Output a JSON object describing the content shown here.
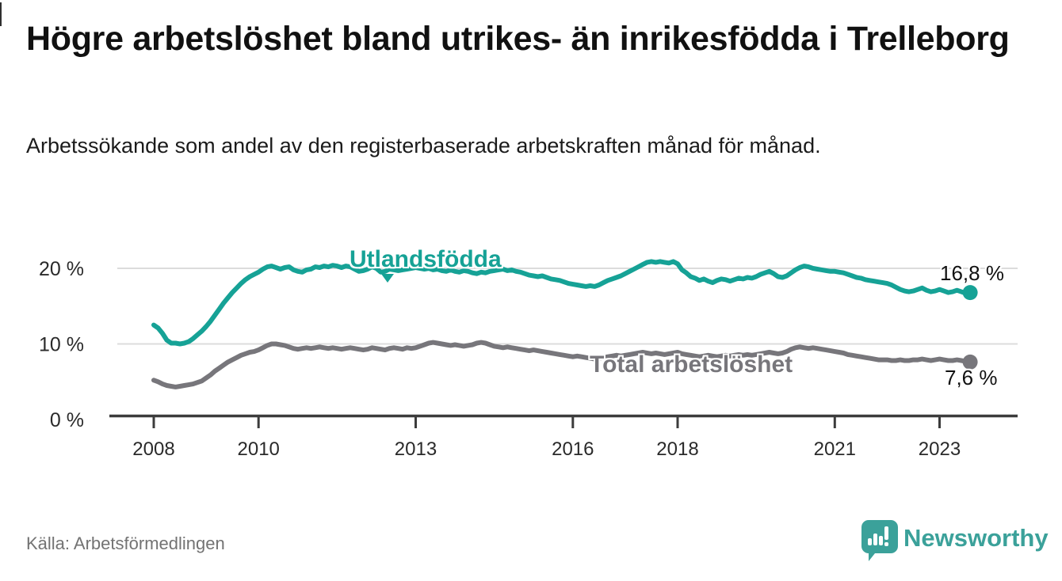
{
  "header": {
    "title": "Högre arbetslöshet bland utrikes- än inrikesfödda i Trelleborg",
    "subtitle": "Arbetssökande som andel av den registerbaserade arbetskraften månad för månad."
  },
  "colors": {
    "teal": "#16a296",
    "gray": "#77767b",
    "grid": "#dcdcdc",
    "axis": "#3c3c3c",
    "tick_text": "#2a2a2a",
    "title_text": "#111111",
    "muted_text": "#737373",
    "logo_teal": "#3ba19a",
    "background": "#ffffff"
  },
  "chart_data": {
    "type": "line",
    "unit": "%",
    "x_start_year": 2008,
    "points_per_year": 12,
    "x_ticks": [
      {
        "year": 2008,
        "label": "2008"
      },
      {
        "year": 2010,
        "label": "2010"
      },
      {
        "year": 2013,
        "label": "2013"
      },
      {
        "year": 2016,
        "label": "2016"
      },
      {
        "year": 2018,
        "label": "2018"
      },
      {
        "year": 2021,
        "label": "2021"
      },
      {
        "year": 2023,
        "label": "2023"
      }
    ],
    "y_ticks": [
      {
        "value": 0,
        "label": "0 %"
      },
      {
        "value": 10,
        "label": "10 %"
      },
      {
        "value": 20,
        "label": "20 %"
      }
    ],
    "ylim": [
      0,
      23
    ],
    "grid": true,
    "legend_position": "inline-labels",
    "series": [
      {
        "name": "Utlandsfödda",
        "color": "#16a296",
        "end_label": "16,8 %",
        "end_value": 16.8,
        "values": [
          12.5,
          12.1,
          11.4,
          10.5,
          10.1,
          10.1,
          10.0,
          10.1,
          10.3,
          10.7,
          11.2,
          11.7,
          12.3,
          13.0,
          13.8,
          14.6,
          15.4,
          16.1,
          16.8,
          17.4,
          18.0,
          18.5,
          18.9,
          19.2,
          19.5,
          19.9,
          20.2,
          20.3,
          20.1,
          19.9,
          20.1,
          20.2,
          19.8,
          19.6,
          19.5,
          19.8,
          19.9,
          20.2,
          20.1,
          20.3,
          20.2,
          20.4,
          20.3,
          20.1,
          20.3,
          20.2,
          19.9,
          19.6,
          19.7,
          19.9,
          20.2,
          20.0,
          19.5,
          19.6,
          19.9,
          19.8,
          19.7,
          19.8,
          19.9,
          20.0,
          20.1,
          20.0,
          19.9,
          20.0,
          19.8,
          19.9,
          19.7,
          19.6,
          19.8,
          19.6,
          19.5,
          19.7,
          19.6,
          19.4,
          19.3,
          19.5,
          19.4,
          19.6,
          19.7,
          19.8,
          19.9,
          19.7,
          19.8,
          19.6,
          19.5,
          19.3,
          19.1,
          19.0,
          18.9,
          19.0,
          18.8,
          18.6,
          18.5,
          18.4,
          18.2,
          18.0,
          17.9,
          17.8,
          17.7,
          17.6,
          17.7,
          17.6,
          17.8,
          18.1,
          18.4,
          18.6,
          18.8,
          19.0,
          19.3,
          19.6,
          19.9,
          20.2,
          20.5,
          20.8,
          20.9,
          20.8,
          20.9,
          20.8,
          20.7,
          20.9,
          20.6,
          19.8,
          19.4,
          18.9,
          18.7,
          18.4,
          18.6,
          18.3,
          18.1,
          18.4,
          18.6,
          18.5,
          18.3,
          18.5,
          18.7,
          18.6,
          18.8,
          18.7,
          18.9,
          19.2,
          19.4,
          19.6,
          19.3,
          18.9,
          18.8,
          19.0,
          19.4,
          19.8,
          20.1,
          20.3,
          20.2,
          20.0,
          19.9,
          19.8,
          19.7,
          19.6,
          19.6,
          19.5,
          19.4,
          19.2,
          19.0,
          18.8,
          18.7,
          18.5,
          18.4,
          18.3,
          18.2,
          18.1,
          18.0,
          17.8,
          17.5,
          17.2,
          17.0,
          16.9,
          17.0,
          17.2,
          17.4,
          17.1,
          16.9,
          17.0,
          17.2,
          17.0,
          16.8,
          16.9,
          17.1,
          16.9,
          16.7,
          16.8
        ]
      },
      {
        "name": "Total arbetslöshet",
        "color": "#77767b",
        "end_label": "7,6 %",
        "end_value": 7.6,
        "values": [
          5.2,
          5.0,
          4.7,
          4.5,
          4.4,
          4.3,
          4.4,
          4.5,
          4.6,
          4.7,
          4.9,
          5.1,
          5.5,
          5.9,
          6.4,
          6.8,
          7.2,
          7.6,
          7.9,
          8.2,
          8.5,
          8.7,
          8.9,
          9.0,
          9.2,
          9.5,
          9.8,
          10.0,
          10.0,
          9.9,
          9.8,
          9.6,
          9.4,
          9.3,
          9.4,
          9.5,
          9.4,
          9.5,
          9.6,
          9.5,
          9.4,
          9.5,
          9.4,
          9.3,
          9.4,
          9.5,
          9.4,
          9.3,
          9.2,
          9.3,
          9.5,
          9.4,
          9.3,
          9.2,
          9.4,
          9.5,
          9.4,
          9.3,
          9.5,
          9.4,
          9.5,
          9.7,
          9.9,
          10.1,
          10.2,
          10.1,
          10.0,
          9.9,
          9.8,
          9.9,
          9.8,
          9.7,
          9.8,
          9.9,
          10.1,
          10.2,
          10.1,
          9.9,
          9.7,
          9.6,
          9.5,
          9.6,
          9.5,
          9.4,
          9.3,
          9.2,
          9.1,
          9.2,
          9.1,
          9.0,
          8.9,
          8.8,
          8.7,
          8.6,
          8.5,
          8.4,
          8.3,
          8.4,
          8.3,
          8.2,
          8.1,
          8.0,
          8.1,
          8.2,
          8.3,
          8.4,
          8.5,
          8.4,
          8.5,
          8.6,
          8.7,
          8.8,
          8.9,
          8.8,
          8.7,
          8.8,
          8.7,
          8.6,
          8.7,
          8.8,
          8.9,
          8.7,
          8.6,
          8.5,
          8.4,
          8.3,
          8.4,
          8.5,
          8.4,
          8.3,
          8.4,
          8.5,
          8.4,
          8.5,
          8.6,
          8.5,
          8.6,
          8.5,
          8.6,
          8.7,
          8.8,
          8.9,
          8.8,
          8.7,
          8.8,
          9.0,
          9.3,
          9.5,
          9.6,
          9.5,
          9.4,
          9.5,
          9.4,
          9.3,
          9.2,
          9.1,
          9.0,
          8.9,
          8.8,
          8.6,
          8.5,
          8.4,
          8.3,
          8.2,
          8.1,
          8.0,
          7.9,
          7.9,
          7.9,
          7.8,
          7.8,
          7.9,
          7.8,
          7.8,
          7.9,
          7.9,
          8.0,
          7.9,
          7.8,
          7.9,
          8.0,
          7.9,
          7.8,
          7.8,
          7.9,
          7.8,
          7.7,
          7.6
        ]
      }
    ]
  },
  "footer": {
    "source": "Källa: Arbetsförmedlingen",
    "brand": "Newsworthy"
  }
}
